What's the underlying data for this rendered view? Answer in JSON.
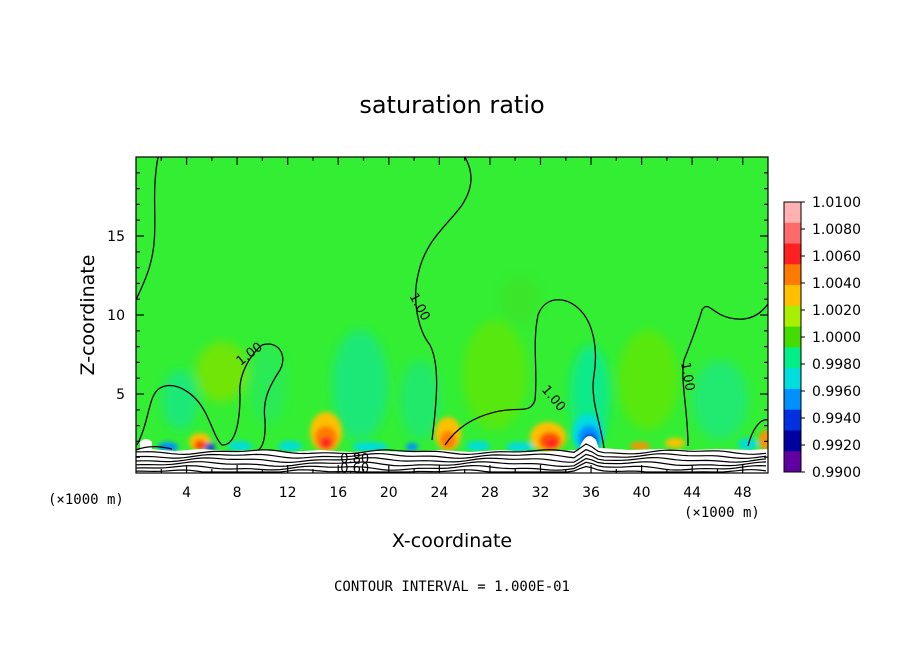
{
  "chart_data": {
    "type": "heatmap",
    "title": "saturation ratio",
    "xlabel": "X-coordinate",
    "ylabel": "Z-coordinate",
    "x_unit": "(×1000 m)",
    "xlim": [
      0,
      50
    ],
    "ylim": [
      0,
      20
    ],
    "x_ticks": [
      4,
      8,
      12,
      16,
      20,
      24,
      28,
      32,
      36,
      40,
      44,
      48
    ],
    "y_ticks": [
      5,
      10,
      15
    ],
    "colorbar": {
      "levels": [
        "1.0100",
        "1.0080",
        "1.0060",
        "1.0040",
        "1.0020",
        "1.0000",
        "0.9980",
        "0.9960",
        "0.9940",
        "0.9920",
        "0.9900"
      ],
      "colors": [
        "#ffb0b0",
        "#ff6a6a",
        "#ff2020",
        "#ff7a00",
        "#ffc000",
        "#a8f000",
        "#44dd00",
        "#00ee88",
        "#00dddd",
        "#0090ff",
        "#0030e0",
        "#0000a0",
        "#6000a0"
      ],
      "background_color": "#33ee33"
    },
    "contour_labels": [
      {
        "text": "1.00",
        "x": 9.0,
        "y": 7.5,
        "angle": -38
      },
      {
        "text": "1.00",
        "x": 22.4,
        "y": 10.5,
        "angle": 62
      },
      {
        "text": "1.00",
        "x": 33.0,
        "y": 4.7,
        "angle": 50
      },
      {
        "text": "1.00",
        "x": 43.6,
        "y": 6.1,
        "angle": 80
      },
      {
        "text": "0.80",
        "x": 17.3,
        "y": 0.85,
        "angle": 0
      },
      {
        "text": "0.60",
        "x": 17.3,
        "y": 0.25,
        "angle": 0
      }
    ],
    "contour_interval_text": "CONTOUR INTERVAL = 1.000E-01"
  }
}
